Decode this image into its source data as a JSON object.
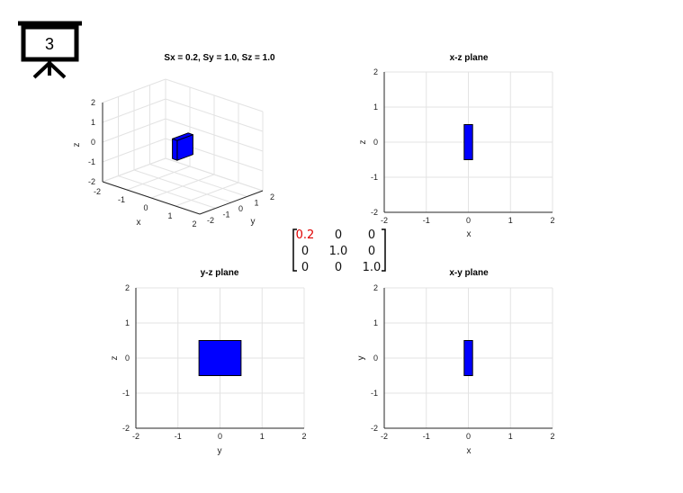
{
  "slide_number": "3",
  "colors": {
    "shape_fill": "#0000ff",
    "grid": "#e3e3e3",
    "axis": "#262626",
    "highlight": "#e00000"
  },
  "matrix": {
    "rows": [
      [
        "0.2",
        "0",
        "0"
      ],
      [
        "0",
        "1.0",
        "0"
      ],
      [
        "0",
        "0",
        "1.0"
      ]
    ],
    "highlight": [
      0,
      0
    ]
  },
  "chart_data": [
    {
      "type": "3d-box",
      "title": "Sx = 0.2, Sy = 1.0, Sz = 1.0",
      "xlabel": "x",
      "ylabel": "y",
      "zlabel": "z",
      "xlim": [
        -2,
        2
      ],
      "ylim": [
        -2,
        2
      ],
      "zlim": [
        -2,
        2
      ],
      "xticks": [
        "-2",
        "-1",
        "0",
        "1",
        "2"
      ],
      "yticks": [
        "-2",
        "-1",
        "0",
        "1",
        "2"
      ],
      "zticks": [
        "-2",
        "-1",
        "0",
        "1",
        "2"
      ],
      "box": {
        "x": [
          -0.1,
          0.1
        ],
        "y": [
          -0.5,
          0.5
        ],
        "z": [
          -0.5,
          0.5
        ]
      },
      "grid": true
    },
    {
      "type": "rect",
      "title": "x-z plane",
      "xlabel": "x",
      "ylabel": "z",
      "xlim": [
        -2,
        2
      ],
      "ylim": [
        -2,
        2
      ],
      "xticks": [
        "-2",
        "-1",
        "0",
        "1",
        "2"
      ],
      "yticks": [
        "-2",
        "-1",
        "0",
        "1",
        "2"
      ],
      "rect": {
        "x": [
          -0.1,
          0.1
        ],
        "y": [
          -0.5,
          0.5
        ]
      },
      "grid": true
    },
    {
      "type": "rect",
      "title": "y-z plane",
      "xlabel": "y",
      "ylabel": "z",
      "xlim": [
        -2,
        2
      ],
      "ylim": [
        -2,
        2
      ],
      "xticks": [
        "-2",
        "-1",
        "0",
        "1",
        "2"
      ],
      "yticks": [
        "-2",
        "-1",
        "0",
        "1",
        "2"
      ],
      "rect": {
        "x": [
          -0.5,
          0.5
        ],
        "y": [
          -0.5,
          0.5
        ]
      },
      "grid": true
    },
    {
      "type": "rect",
      "title": "x-y plane",
      "xlabel": "x",
      "ylabel": "y",
      "xlim": [
        -2,
        2
      ],
      "ylim": [
        -2,
        2
      ],
      "xticks": [
        "-2",
        "-1",
        "0",
        "1",
        "2"
      ],
      "yticks": [
        "-2",
        "-1",
        "0",
        "1",
        "2"
      ],
      "rect": {
        "x": [
          -0.1,
          0.1
        ],
        "y": [
          -0.5,
          0.5
        ]
      },
      "grid": true
    }
  ]
}
